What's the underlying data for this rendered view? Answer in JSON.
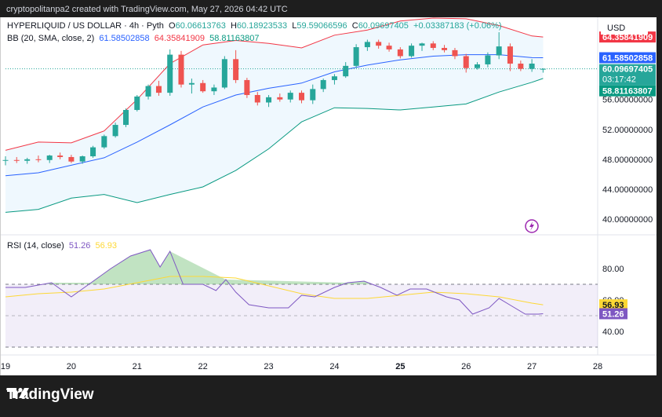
{
  "header": {
    "caption": "cryptopolitanpa2 created with TradingView.com, May 27, 2026 04:42 UTC"
  },
  "price_legend": {
    "symbol": "HYPERLIQUID / US DOLLAR · 4h · Pyth",
    "o_label": "O",
    "o": "60.06613763",
    "h_label": "H",
    "h": "60.18923533",
    "l_label": "L",
    "l": "59.59066596",
    "c_label": "C",
    "c": "60.09697405",
    "change": "+0.03387183 (+0.06%)"
  },
  "bb_legend": {
    "name": "BB (20, SMA, close, 2)",
    "basis": "61.58502858",
    "upper": "64.35841909",
    "lower": "58.81163807"
  },
  "rsi_legend": {
    "name": "RSI (14, close)",
    "rsi": "51.26",
    "ma": "56.93"
  },
  "currency": "USD",
  "price_badges": {
    "upper": "64.35841909",
    "basis": "61.58502858",
    "close": "60.09697405",
    "countdown": "03:17:42",
    "lower": "58.81163807"
  },
  "rsi_badges": {
    "ma": "56.93",
    "rsi": "51.26"
  },
  "brand": "TradingView",
  "colors": {
    "up": "#26a69a",
    "down": "#ef5350",
    "upper_band": "#f23645",
    "basis": "#2962ff",
    "lower_band": "#089981",
    "rsi": "#7e57c2",
    "rsi_ma": "#fdd835"
  },
  "chart_data": [
    {
      "type": "candlestick",
      "yticks": [
        "40.00000000",
        "44.00000000",
        "48.00000000",
        "52.00000000",
        "56.00000000"
      ],
      "ylim": [
        38,
        67
      ],
      "xticks": [
        {
          "x": 19,
          "label": "19"
        },
        {
          "x": 20,
          "label": "20"
        },
        {
          "x": 21,
          "label": "21"
        },
        {
          "x": 22,
          "label": "22"
        },
        {
          "x": 23,
          "label": "23"
        },
        {
          "x": 24,
          "label": "24"
        },
        {
          "x": 25,
          "label": "25"
        },
        {
          "x": 26,
          "label": "26"
        },
        {
          "x": 27,
          "label": "27"
        },
        {
          "x": 28,
          "label": "28"
        }
      ],
      "xlim": [
        19.0,
        28.0
      ],
      "candles": [
        {
          "x": 19.0,
          "o": 47.8,
          "h": 48.4,
          "l": 47.2,
          "c": 47.9
        },
        {
          "x": 19.17,
          "o": 47.9,
          "h": 48.3,
          "l": 47.5,
          "c": 47.8
        },
        {
          "x": 19.33,
          "o": 47.8,
          "h": 48.2,
          "l": 47.4,
          "c": 48.0
        },
        {
          "x": 19.5,
          "o": 48.0,
          "h": 48.5,
          "l": 47.6,
          "c": 47.9
        },
        {
          "x": 19.67,
          "o": 47.9,
          "h": 48.6,
          "l": 47.5,
          "c": 48.5
        },
        {
          "x": 19.83,
          "o": 48.5,
          "h": 48.9,
          "l": 48.0,
          "c": 48.3
        },
        {
          "x": 20.0,
          "o": 48.3,
          "h": 48.6,
          "l": 47.5,
          "c": 47.7
        },
        {
          "x": 20.17,
          "o": 47.7,
          "h": 48.5,
          "l": 47.4,
          "c": 48.4
        },
        {
          "x": 20.33,
          "o": 48.4,
          "h": 49.8,
          "l": 48.2,
          "c": 49.6
        },
        {
          "x": 20.5,
          "o": 49.6,
          "h": 51.3,
          "l": 49.4,
          "c": 51.1
        },
        {
          "x": 20.67,
          "o": 51.1,
          "h": 52.9,
          "l": 50.9,
          "c": 52.6
        },
        {
          "x": 20.83,
          "o": 52.6,
          "h": 54.8,
          "l": 52.3,
          "c": 54.6
        },
        {
          "x": 21.0,
          "o": 54.6,
          "h": 56.6,
          "l": 54.4,
          "c": 56.4
        },
        {
          "x": 21.17,
          "o": 56.4,
          "h": 58.0,
          "l": 56.0,
          "c": 57.8
        },
        {
          "x": 21.33,
          "o": 57.8,
          "h": 58.5,
          "l": 56.5,
          "c": 56.9
        },
        {
          "x": 21.5,
          "o": 56.9,
          "h": 62.7,
          "l": 56.5,
          "c": 62.0
        },
        {
          "x": 21.67,
          "o": 62.0,
          "h": 62.5,
          "l": 57.6,
          "c": 58.0
        },
        {
          "x": 21.83,
          "o": 58.0,
          "h": 58.8,
          "l": 56.8,
          "c": 58.2
        },
        {
          "x": 22.0,
          "o": 58.2,
          "h": 58.6,
          "l": 56.9,
          "c": 57.1
        },
        {
          "x": 22.17,
          "o": 57.1,
          "h": 58.0,
          "l": 56.6,
          "c": 57.6
        },
        {
          "x": 22.33,
          "o": 57.6,
          "h": 61.8,
          "l": 57.4,
          "c": 61.4
        },
        {
          "x": 22.5,
          "o": 61.4,
          "h": 62.6,
          "l": 58.2,
          "c": 58.6
        },
        {
          "x": 22.67,
          "o": 58.6,
          "h": 58.9,
          "l": 56.2,
          "c": 56.6
        },
        {
          "x": 22.83,
          "o": 56.6,
          "h": 57.0,
          "l": 55.2,
          "c": 55.6
        },
        {
          "x": 23.0,
          "o": 55.6,
          "h": 56.6,
          "l": 55.0,
          "c": 56.3
        },
        {
          "x": 23.17,
          "o": 56.3,
          "h": 56.8,
          "l": 55.7,
          "c": 56.0
        },
        {
          "x": 23.33,
          "o": 56.0,
          "h": 57.2,
          "l": 55.6,
          "c": 56.9
        },
        {
          "x": 23.5,
          "o": 56.9,
          "h": 57.2,
          "l": 55.5,
          "c": 55.9
        },
        {
          "x": 23.67,
          "o": 55.9,
          "h": 58.0,
          "l": 55.4,
          "c": 57.4
        },
        {
          "x": 23.83,
          "o": 57.4,
          "h": 58.8,
          "l": 57.0,
          "c": 58.6
        },
        {
          "x": 24.0,
          "o": 58.6,
          "h": 59.4,
          "l": 58.0,
          "c": 59.1
        },
        {
          "x": 24.17,
          "o": 59.1,
          "h": 61.0,
          "l": 58.9,
          "c": 60.5
        },
        {
          "x": 24.33,
          "o": 60.5,
          "h": 63.4,
          "l": 60.2,
          "c": 63.0
        },
        {
          "x": 24.5,
          "o": 63.0,
          "h": 64.0,
          "l": 62.5,
          "c": 63.7
        },
        {
          "x": 24.67,
          "o": 63.7,
          "h": 64.0,
          "l": 62.8,
          "c": 63.2
        },
        {
          "x": 24.83,
          "o": 63.2,
          "h": 63.6,
          "l": 62.4,
          "c": 62.7
        },
        {
          "x": 25.0,
          "o": 62.7,
          "h": 63.0,
          "l": 61.5,
          "c": 61.8
        },
        {
          "x": 25.17,
          "o": 61.8,
          "h": 63.5,
          "l": 61.6,
          "c": 63.2
        },
        {
          "x": 25.33,
          "o": 63.2,
          "h": 63.6,
          "l": 62.5,
          "c": 63.5
        },
        {
          "x": 25.5,
          "o": 63.5,
          "h": 63.8,
          "l": 62.6,
          "c": 62.9
        },
        {
          "x": 25.67,
          "o": 62.9,
          "h": 63.3,
          "l": 62.3,
          "c": 62.6
        },
        {
          "x": 25.83,
          "o": 62.6,
          "h": 62.9,
          "l": 61.4,
          "c": 61.8
        },
        {
          "x": 26.0,
          "o": 61.8,
          "h": 62.1,
          "l": 59.6,
          "c": 60.2
        },
        {
          "x": 26.17,
          "o": 60.2,
          "h": 61.0,
          "l": 60.0,
          "c": 60.7
        },
        {
          "x": 26.33,
          "o": 60.7,
          "h": 62.3,
          "l": 60.3,
          "c": 61.9
        },
        {
          "x": 26.5,
          "o": 61.9,
          "h": 65.0,
          "l": 61.4,
          "c": 63.1
        },
        {
          "x": 26.67,
          "o": 63.1,
          "h": 63.5,
          "l": 59.8,
          "c": 60.8
        },
        {
          "x": 26.83,
          "o": 60.8,
          "h": 61.2,
          "l": 59.8,
          "c": 60.1
        },
        {
          "x": 27.0,
          "o": 60.1,
          "h": 61.4,
          "l": 59.7,
          "c": 60.8
        },
        {
          "x": 27.17,
          "o": 60.07,
          "h": 60.19,
          "l": 59.59,
          "c": 60.1
        }
      ],
      "bollinger": {
        "x": [
          19.0,
          19.5,
          20.0,
          20.5,
          21.0,
          21.5,
          22.0,
          22.5,
          23.0,
          23.5,
          24.0,
          24.5,
          25.0,
          25.5,
          26.0,
          26.5,
          27.0,
          27.17
        ],
        "upper": [
          49.2,
          50.3,
          50.2,
          51.8,
          56.0,
          60.8,
          63.3,
          63.9,
          63.5,
          62.9,
          64.6,
          65.3,
          66.5,
          66.9,
          66.8,
          65.9,
          64.5,
          64.36
        ],
        "basis": [
          45.8,
          46.2,
          47.2,
          48.2,
          50.3,
          52.6,
          55.0,
          56.6,
          57.5,
          58.2,
          59.7,
          60.6,
          61.3,
          61.8,
          62.0,
          62.0,
          61.6,
          61.59
        ],
        "lower": [
          40.9,
          41.3,
          42.8,
          43.3,
          42.2,
          43.3,
          44.3,
          46.5,
          49.4,
          53.0,
          54.9,
          54.8,
          54.6,
          55.0,
          55.4,
          57.0,
          58.3,
          58.81
        ]
      }
    },
    {
      "type": "line",
      "yticks": [
        "40.00",
        "60.00",
        "80.00"
      ],
      "ylim": [
        25,
        100
      ],
      "levels": [
        70,
        50,
        30
      ],
      "series": [
        {
          "name": "RSI",
          "x": [
            19.0,
            19.3,
            19.7,
            20.0,
            20.3,
            20.6,
            20.9,
            21.2,
            21.35,
            21.5,
            21.7,
            22.0,
            22.2,
            22.35,
            22.5,
            22.7,
            23.0,
            23.3,
            23.5,
            23.7,
            24.0,
            24.2,
            24.45,
            24.7,
            24.95,
            25.15,
            25.4,
            25.7,
            25.9,
            26.1,
            26.35,
            26.5,
            26.7,
            26.9,
            27.1,
            27.17
          ],
          "values": [
            68,
            68,
            71,
            62,
            71,
            80,
            88,
            92,
            81,
            91,
            70,
            70,
            66,
            73,
            65,
            57,
            55,
            55,
            63,
            62,
            68,
            71,
            72,
            68,
            63,
            67,
            67,
            62,
            60,
            51,
            55,
            61,
            56,
            51,
            51,
            51.26
          ]
        },
        {
          "name": "RSI-based MA",
          "x": [
            19.0,
            19.5,
            20.0,
            20.5,
            21.0,
            21.5,
            22.0,
            22.5,
            23.0,
            23.5,
            24.0,
            24.5,
            25.0,
            25.5,
            26.0,
            26.5,
            27.0,
            27.17
          ],
          "values": [
            62,
            64,
            65,
            67,
            71,
            75,
            75,
            74,
            69,
            64,
            61,
            61,
            63,
            65,
            64,
            62,
            58,
            56.93
          ]
        }
      ]
    }
  ]
}
